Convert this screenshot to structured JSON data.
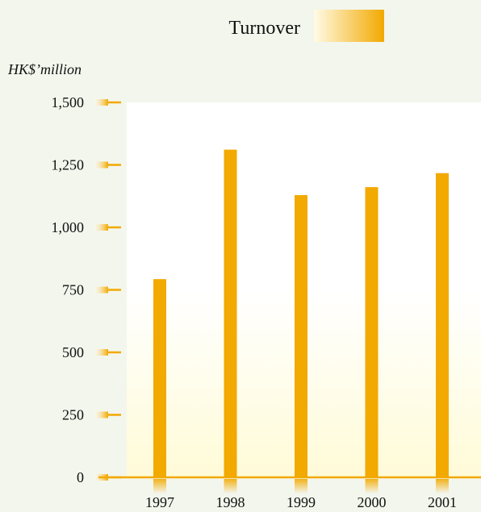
{
  "chart_data": {
    "type": "bar",
    "title": "Turnover",
    "ylabel": "HK$’million",
    "xlabel": "",
    "categories": [
      "1997",
      "1998",
      "1999",
      "2000",
      "2001"
    ],
    "values": [
      793,
      1311,
      1129,
      1161,
      1217
    ],
    "ylim": [
      0,
      1500
    ],
    "yticks": [
      0,
      250,
      500,
      750,
      1000,
      1250,
      1500
    ],
    "ytick_labels": [
      "0",
      "250",
      "500",
      "750",
      "1,000",
      "1,250",
      "1,500"
    ],
    "grid": false,
    "legend": "top-center",
    "colors": {
      "bar": "#f2a900",
      "axis": "#f2a900",
      "legend_swatch_start": "#fffbe6",
      "legend_swatch_end": "#f2a900",
      "plot_bg_top": "#ffffff",
      "plot_bg_bottom": "#fffbd8",
      "page_bg": "#f3f6ec"
    }
  }
}
